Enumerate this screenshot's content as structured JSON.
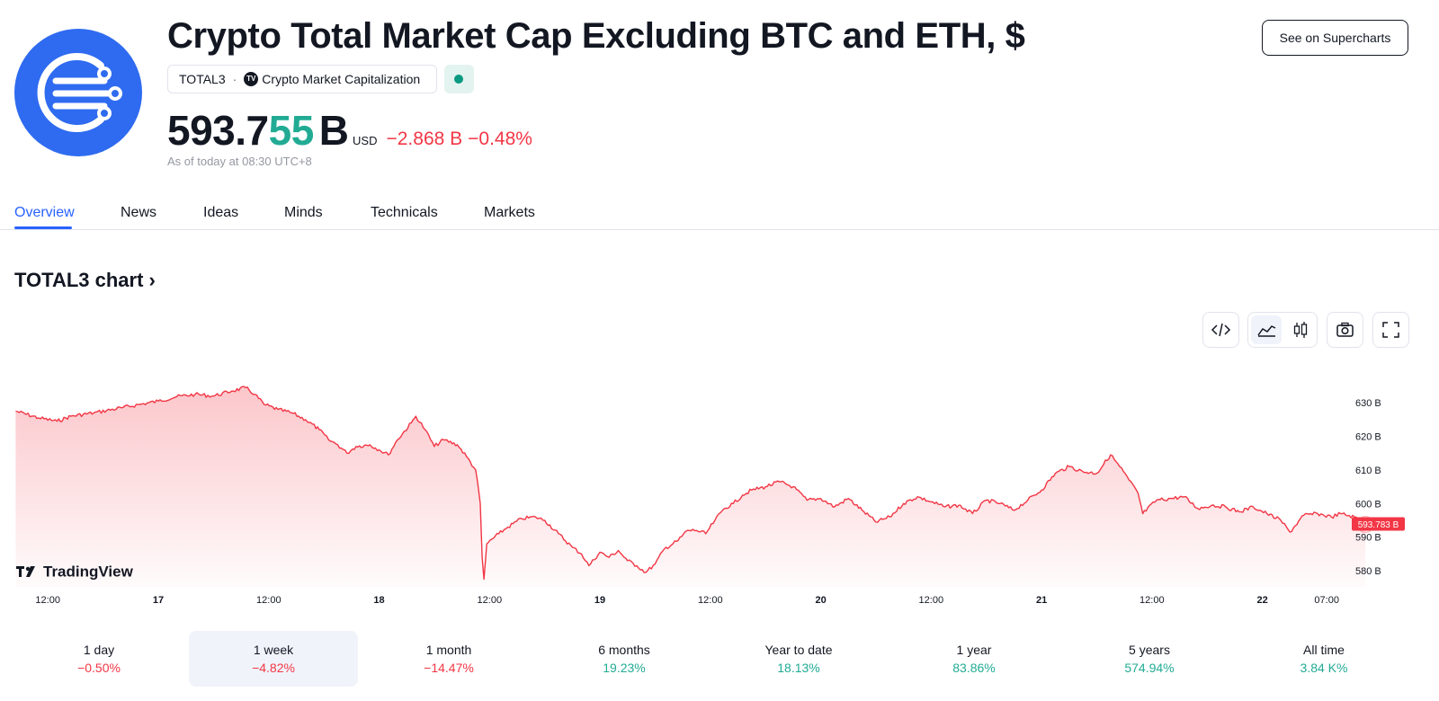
{
  "header": {
    "title": "Crypto Total Market Cap Excluding BTC and ETH, $",
    "symbol": "TOTAL3",
    "source": "Crypto Market Capitalization",
    "source_badge": "TV",
    "supercharts_label": "See on Supercharts"
  },
  "price": {
    "main": "593.7",
    "highlight": "55",
    "unit": "B",
    "currency": "USD",
    "change": "−2.868 B",
    "change_pct": "−0.48%",
    "as_of": "As of today at 08:30 UTC+8"
  },
  "tabs": [
    {
      "label": "Overview",
      "active": true
    },
    {
      "label": "News"
    },
    {
      "label": "Ideas"
    },
    {
      "label": "Minds"
    },
    {
      "label": "Technicals"
    },
    {
      "label": "Markets"
    }
  ],
  "chart_heading": "TOTAL3 chart",
  "toolbar": [
    "code-icon",
    "area-chart-icon",
    "candles-icon",
    "camera-icon",
    "fullscreen-icon"
  ],
  "watermark": "TradingView",
  "colors": {
    "line": "#f23645",
    "accent": "#2962ff",
    "positive": "#22ab94",
    "negative": "#f23645"
  },
  "chart_data": {
    "type": "area",
    "y_unit": "B",
    "ylim": [
      576,
      637
    ],
    "y_ticks": [
      "630 B",
      "620 B",
      "610 B",
      "600 B",
      "590 B",
      "580 B"
    ],
    "x_ticks": [
      {
        "label": "12:00",
        "bold": false
      },
      {
        "label": "17",
        "bold": true
      },
      {
        "label": "12:00",
        "bold": false
      },
      {
        "label": "18",
        "bold": true
      },
      {
        "label": "12:00",
        "bold": false
      },
      {
        "label": "19",
        "bold": true
      },
      {
        "label": "12:00",
        "bold": false
      },
      {
        "label": "20",
        "bold": true
      },
      {
        "label": "12:00",
        "bold": false
      },
      {
        "label": "21",
        "bold": true
      },
      {
        "label": "12:00",
        "bold": false
      },
      {
        "label": "22",
        "bold": true
      },
      {
        "label": "07:00",
        "bold": false
      }
    ],
    "x_hours": [
      -12,
      0,
      12,
      24,
      36,
      48,
      60,
      72,
      84,
      96,
      108,
      120,
      127
    ],
    "points": [
      [
        -15.5,
        627.5
      ],
      [
        -13,
        625.5
      ],
      [
        -11,
        624.5
      ],
      [
        -9.5,
        626
      ],
      [
        -7,
        627
      ],
      [
        -4,
        628.5
      ],
      [
        -2,
        629.5
      ],
      [
        0,
        630.5
      ],
      [
        2,
        631.8
      ],
      [
        4,
        632.5
      ],
      [
        6,
        632
      ],
      [
        8,
        633.5
      ],
      [
        9.5,
        634.5
      ],
      [
        10.5,
        632.5
      ],
      [
        11.5,
        629.5
      ],
      [
        13,
        628
      ],
      [
        14.5,
        627
      ],
      [
        16,
        625
      ],
      [
        17.5,
        622
      ],
      [
        18.5,
        619
      ],
      [
        19.5,
        617.5
      ],
      [
        20.5,
        615
      ],
      [
        21.5,
        617
      ],
      [
        23,
        617.5
      ],
      [
        24,
        616
      ],
      [
        25,
        614.5
      ],
      [
        26,
        619
      ],
      [
        27.5,
        624
      ],
      [
        28,
        626
      ],
      [
        29,
        622
      ],
      [
        30,
        617
      ],
      [
        31,
        619
      ],
      [
        32.5,
        617.5
      ],
      [
        33.5,
        614
      ],
      [
        34.5,
        610
      ],
      [
        35,
        600
      ],
      [
        35.2,
        584
      ],
      [
        35.4,
        577.5
      ],
      [
        35.7,
        588
      ],
      [
        37,
        591
      ],
      [
        38,
        593
      ],
      [
        39.5,
        595.5
      ],
      [
        41,
        596
      ],
      [
        42,
        595
      ],
      [
        43.5,
        591
      ],
      [
        45,
        587
      ],
      [
        46,
        585
      ],
      [
        46.8,
        581.5
      ],
      [
        48,
        585.5
      ],
      [
        49,
        584
      ],
      [
        50,
        586
      ],
      [
        51,
        583
      ],
      [
        52,
        581.5
      ],
      [
        53,
        579.5
      ],
      [
        54,
        582
      ],
      [
        55,
        586.5
      ],
      [
        56.5,
        589
      ],
      [
        57.5,
        592
      ],
      [
        58.5,
        592
      ],
      [
        59.5,
        591
      ],
      [
        60.5,
        595
      ],
      [
        61.5,
        598.5
      ],
      [
        62.5,
        600
      ],
      [
        63.5,
        602.5
      ],
      [
        64.5,
        604
      ],
      [
        66,
        605
      ],
      [
        67.5,
        606.5
      ],
      [
        69,
        605
      ],
      [
        70.5,
        601
      ],
      [
        72,
        601.5
      ],
      [
        73.5,
        599
      ],
      [
        75,
        601.5
      ],
      [
        76.5,
        598
      ],
      [
        78,
        594.5
      ],
      [
        79.5,
        596
      ],
      [
        81,
        600
      ],
      [
        82.5,
        602
      ],
      [
        84,
        600.5
      ],
      [
        85.5,
        599
      ],
      [
        87,
        599.5
      ],
      [
        88.5,
        597
      ],
      [
        90,
        601
      ],
      [
        91.5,
        600
      ],
      [
        93,
        598
      ],
      [
        94.5,
        601
      ],
      [
        96,
        604
      ],
      [
        97.5,
        609
      ],
      [
        99,
        611
      ],
      [
        100.5,
        609.5
      ],
      [
        102,
        609
      ],
      [
        103.5,
        614.5
      ],
      [
        104.5,
        611
      ],
      [
        105.5,
        607
      ],
      [
        106.5,
        603
      ],
      [
        107,
        597
      ],
      [
        108.5,
        601
      ],
      [
        110,
        601.5
      ],
      [
        111.5,
        602
      ],
      [
        113,
        598.5
      ],
      [
        114.5,
        599.5
      ],
      [
        116,
        599
      ],
      [
        117.5,
        597.5
      ],
      [
        119,
        599
      ],
      [
        120.5,
        597
      ],
      [
        122,
        595
      ],
      [
        123,
        591.5
      ],
      [
        124.5,
        596.5
      ],
      [
        126,
        597
      ],
      [
        127.5,
        596
      ],
      [
        128.5,
        597
      ],
      [
        130,
        596
      ],
      [
        131.2,
        593.8
      ]
    ],
    "last_value_label": "593.783 B"
  },
  "periods": [
    {
      "label": "1 day",
      "value": "−0.50%",
      "sign": "neg"
    },
    {
      "label": "1 week",
      "value": "−4.82%",
      "sign": "neg",
      "active": true
    },
    {
      "label": "1 month",
      "value": "−14.47%",
      "sign": "neg"
    },
    {
      "label": "6 months",
      "value": "19.23%",
      "sign": "pos"
    },
    {
      "label": "Year to date",
      "value": "18.13%",
      "sign": "pos"
    },
    {
      "label": "1 year",
      "value": "83.86%",
      "sign": "pos"
    },
    {
      "label": "5 years",
      "value": "574.94%",
      "sign": "pos"
    },
    {
      "label": "All time",
      "value": "3.84 K%",
      "sign": "pos"
    }
  ]
}
